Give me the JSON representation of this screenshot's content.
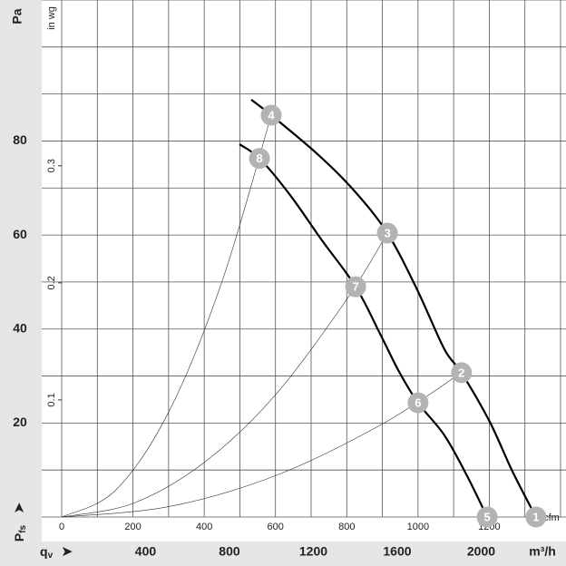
{
  "chart_data": {
    "type": "fan-curve",
    "y_unit": "Pa",
    "y2_unit": "in wg",
    "x_unit": "cfm",
    "x2_unit": "m³/h",
    "y_label": {
      "main": "P",
      "sub": "fs"
    },
    "x2_label": {
      "main": "q",
      "sub": "v"
    },
    "xlim": [
      0,
      1400
    ],
    "xticks": [
      0,
      200,
      400,
      600,
      800,
      1000,
      1200
    ],
    "xgrid": [
      0,
      100,
      200,
      300,
      400,
      500,
      600,
      700,
      800,
      900,
      1000,
      1100,
      1200,
      1300,
      1400
    ],
    "ylim": [
      0,
      110
    ],
    "yticks": [
      20,
      40,
      60,
      80
    ],
    "ygrid": [
      0,
      10,
      20,
      30,
      40,
      50,
      60,
      70,
      80,
      90,
      100,
      110
    ],
    "y2lim": [
      0,
      0.4416
    ],
    "y2ticks": [
      0.1,
      0.2,
      0.3
    ],
    "x2lim": [
      0,
      2378.6
    ],
    "x2ticks": [
      400,
      800,
      1200,
      1600,
      2000
    ],
    "series": [
      {
        "color": "#000000",
        "line_width": 2.2,
        "x": [
          532,
          588,
          718,
          820,
          914,
          998,
          1074,
          1122,
          1201,
          1265,
          1331
        ],
        "values": [
          88.8,
          85.5,
          77.2,
          69.5,
          60.4,
          48.3,
          35.7,
          30.7,
          20.3,
          9.7,
          0
        ]
      },
      {
        "color": "#000000",
        "line_width": 2.2,
        "x": [
          499,
          555,
          641,
          730,
          825,
          896,
          947,
          1000,
          1074,
          1138,
          1194
        ],
        "values": [
          79.3,
          76.3,
          68.5,
          58.9,
          49.0,
          38.6,
          30.9,
          24.3,
          17.4,
          8.7,
          0
        ]
      },
      {
        "color": "#333333",
        "line_width": 0.6,
        "x": [
          0,
          150,
          300,
          450,
          588
        ],
        "values": [
          0,
          5.6,
          22.3,
          50.1,
          85.5
        ]
      },
      {
        "color": "#333333",
        "line_width": 0.6,
        "x": [
          0,
          200,
          400,
          600,
          800,
          914
        ],
        "values": [
          0,
          2.9,
          11.6,
          26.0,
          46.3,
          60.4
        ]
      },
      {
        "color": "#333333",
        "line_width": 0.6,
        "x": [
          0,
          300,
          600,
          900,
          1122
        ],
        "values": [
          0,
          2.2,
          8.8,
          19.8,
          30.7
        ]
      }
    ],
    "points": [
      {
        "label": "1",
        "x": 1331,
        "y": 0
      },
      {
        "label": "2",
        "x": 1122,
        "y": 30.7
      },
      {
        "label": "3",
        "x": 914,
        "y": 60.4
      },
      {
        "label": "4",
        "x": 588,
        "y": 85.5
      },
      {
        "label": "5",
        "x": 1194,
        "y": 0
      },
      {
        "label": "6",
        "x": 1000,
        "y": 24.3
      },
      {
        "label": "7",
        "x": 825,
        "y": 49.0
      },
      {
        "label": "8",
        "x": 555,
        "y": 76.3
      }
    ],
    "point_color": "#b3b3b3"
  }
}
